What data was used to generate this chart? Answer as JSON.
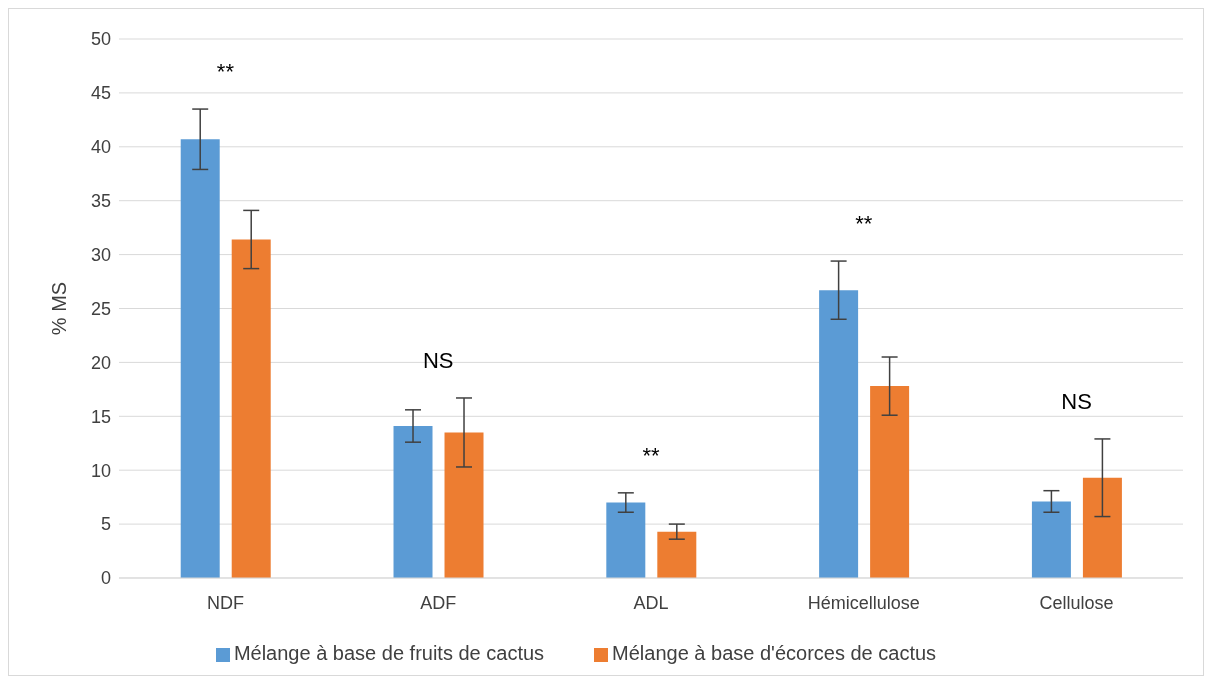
{
  "chart_data": {
    "type": "bar",
    "ylabel": "% MS",
    "categories": [
      "NDF",
      "ADF",
      "ADL",
      "Hémicellulose",
      "Cellulose"
    ],
    "series": [
      {
        "name": "Mélange à base de fruits de cactus",
        "color": "#5b9bd5",
        "values": [
          40.7,
          14.1,
          7.0,
          26.7,
          7.1
        ],
        "errors": [
          2.8,
          1.5,
          0.9,
          2.7,
          1.0
        ]
      },
      {
        "name": "Mélange à base d'écorces de cactus",
        "color": "#ed7d31",
        "values": [
          31.4,
          13.5,
          4.3,
          17.8,
          9.3
        ],
        "errors": [
          2.7,
          3.2,
          0.7,
          2.7,
          3.6
        ]
      }
    ],
    "ylim": [
      0,
      50
    ],
    "yticks": [
      0,
      5,
      10,
      15,
      20,
      25,
      30,
      35,
      40,
      45,
      50
    ],
    "grid": "y",
    "legend": "bottom",
    "annotations": [
      "**",
      "NS",
      "**",
      "**",
      "NS"
    ]
  }
}
